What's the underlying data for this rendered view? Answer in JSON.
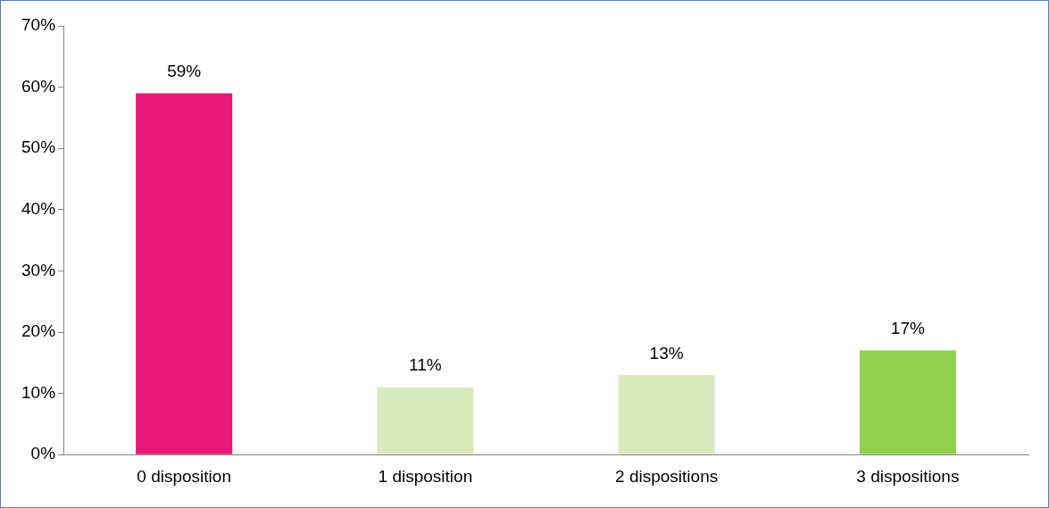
{
  "chart_data": {
    "type": "bar",
    "categories": [
      "0 disposition",
      "1 disposition",
      "2 dispositions",
      "3 dispositions"
    ],
    "values": [
      59,
      11,
      13,
      17
    ],
    "colors": [
      "#e8197a",
      "#d7ebbf",
      "#d7ebbf",
      "#92d050"
    ],
    "value_labels": [
      "59%",
      "11%",
      "13%",
      "17%"
    ],
    "ylim": [
      0,
      70
    ],
    "yticks": [
      {
        "value": 0,
        "label": "0%"
      },
      {
        "value": 10,
        "label": "10%"
      },
      {
        "value": 20,
        "label": "20%"
      },
      {
        "value": 30,
        "label": "30%"
      },
      {
        "value": 40,
        "label": "40%"
      },
      {
        "value": 50,
        "label": "50%"
      },
      {
        "value": 60,
        "label": "60%"
      },
      {
        "value": 70,
        "label": "70%"
      }
    ],
    "grid": false,
    "legend": false
  }
}
